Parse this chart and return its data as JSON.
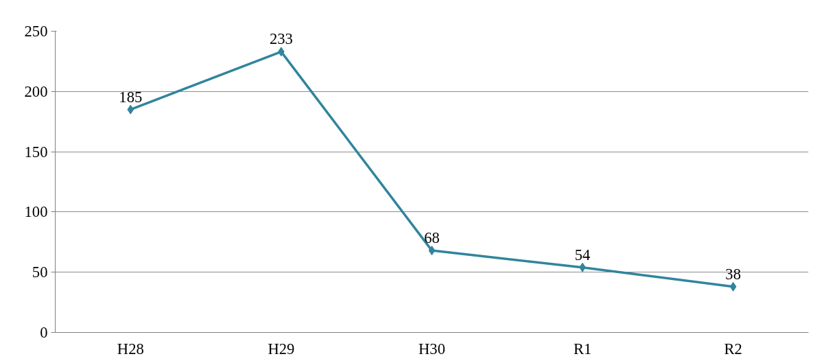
{
  "chart_data": {
    "type": "line",
    "categories": [
      "H28",
      "H29",
      "H30",
      "R1",
      "R2"
    ],
    "series": [
      {
        "color": "#31859c",
        "values": [
          185,
          233,
          68,
          54,
          38
        ]
      }
    ],
    "ylim": [
      0,
      250
    ],
    "yticks": [
      0,
      50,
      100,
      150,
      200,
      250
    ],
    "grid": "y",
    "marker": "diamond",
    "line_style": "solid",
    "data_labels": true
  }
}
